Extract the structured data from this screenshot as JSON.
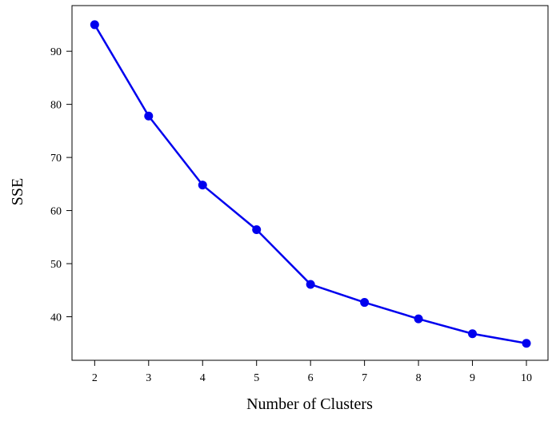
{
  "chart_data": {
    "type": "line",
    "title": "",
    "xlabel": "Number of Clusters",
    "ylabel": "SSE",
    "x": [
      2,
      3,
      4,
      5,
      6,
      7,
      8,
      9,
      10
    ],
    "series": [
      {
        "values": [
          95.0,
          77.8,
          64.8,
          56.4,
          46.1,
          42.7,
          39.6,
          36.8,
          35.0
        ],
        "color": "#0000ee",
        "marker": "circle"
      }
    ],
    "xticks": [
      "2",
      "3",
      "4",
      "5",
      "6",
      "7",
      "8",
      "9",
      "10"
    ],
    "yticks": [
      "40",
      "50",
      "60",
      "70",
      "80",
      "90"
    ],
    "xlim": [
      1.58,
      10.4
    ],
    "ylim": [
      31.8,
      98.6
    ],
    "grid": false,
    "legend": "none"
  }
}
